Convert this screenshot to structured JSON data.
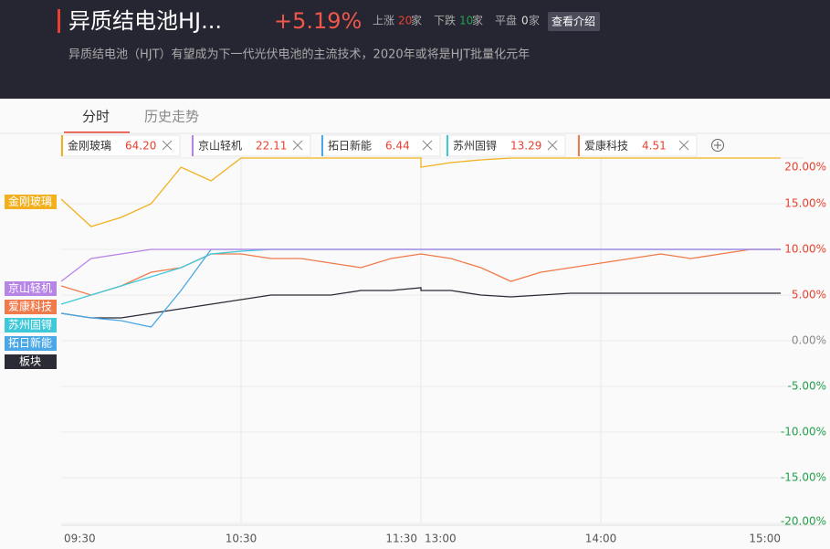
{
  "header": {
    "title": "异质结电池HJ...",
    "change": "+5.19%",
    "up_label": "上涨",
    "up_count": 20,
    "down_label": "下跌",
    "down_count": 10,
    "flat_label": "平盘",
    "flat_count": 0,
    "unit": "家",
    "button": "查看介绍",
    "description": "异质结电池（HJT）有望成为下一代光伏电池的主流技术，2020年或将是HJT批量化元年"
  },
  "tabs": [
    "分时",
    "历史走势"
  ],
  "chart_data": {
    "type": "line",
    "categories": [
      "09:30",
      null,
      null,
      null,
      null,
      null,
      "10:30",
      null,
      null,
      null,
      null,
      null,
      "11:30",
      "13:00",
      null,
      null,
      null,
      null,
      null,
      "14:00",
      null,
      null,
      null,
      null,
      null,
      "15:00"
    ],
    "series": [
      {
        "name": "金刚玻璃",
        "price": "64.20",
        "color": "#f2b01e",
        "values": [
          15.5,
          12.5,
          13.5,
          15,
          19,
          17.5,
          20,
          20,
          20,
          20,
          20,
          20,
          20,
          19,
          19.5,
          19.8,
          20,
          20,
          20,
          20,
          20,
          20,
          20,
          20,
          20,
          20
        ]
      },
      {
        "name": "京山轻机",
        "price": "22.11",
        "color": "#b785e6",
        "values": [
          6.5,
          9,
          9.5,
          10,
          10,
          10,
          10,
          10,
          10,
          10,
          10,
          10,
          10,
          10,
          10,
          10,
          10,
          10,
          10,
          10,
          10,
          10,
          10,
          10,
          10,
          10
        ]
      },
      {
        "name": "拓日新能",
        "price": "6.44",
        "color": "#4aa8e6",
        "values": [
          3,
          2.5,
          2.2,
          1.5,
          5.5,
          10,
          10,
          10,
          10,
          10,
          10,
          10,
          10,
          10,
          10,
          10,
          10,
          10,
          10,
          10,
          10,
          10,
          10,
          10,
          10,
          10
        ]
      },
      {
        "name": "苏州固锝",
        "price": "13.29",
        "color": "#3ec8d8",
        "values": [
          4,
          5,
          6,
          7,
          8,
          9.5,
          9.8,
          10,
          10,
          10,
          10,
          10,
          10,
          10,
          10,
          10,
          10,
          10,
          10,
          10,
          10,
          10,
          10,
          10,
          10,
          10
        ]
      },
      {
        "name": "爱康科技",
        "price": "4.51",
        "color": "#f07a4a",
        "values": [
          6,
          5,
          6,
          7.5,
          8,
          9.5,
          9.5,
          9,
          9,
          8.5,
          8,
          9,
          9.5,
          9.5,
          9,
          8,
          6.5,
          7.5,
          8,
          8.5,
          9,
          9.5,
          9,
          9.5,
          10,
          10
        ]
      },
      {
        "name": "板块",
        "color": "#2b2b36",
        "values": [
          3,
          2.5,
          2.5,
          3,
          3.5,
          4,
          4.5,
          5,
          5,
          5,
          5.5,
          5.5,
          5.8,
          5.5,
          5.5,
          5,
          4.8,
          5,
          5.2,
          5.2,
          5.2,
          5.2,
          5.2,
          5.2,
          5.2,
          5.2
        ]
      }
    ],
    "ylim": [
      -20,
      20
    ],
    "yticks": [
      {
        "value": 20,
        "label": "20.00%"
      },
      {
        "value": 15,
        "label": "15.00%"
      },
      {
        "value": 10,
        "label": "10.00%"
      },
      {
        "value": 5,
        "label": "5.00%"
      },
      {
        "value": 0,
        "label": "0.00%"
      },
      {
        "value": -5,
        "label": "-5.00%"
      },
      {
        "value": -10,
        "label": "-10.00%"
      },
      {
        "value": -15,
        "label": "-15.00%"
      },
      {
        "value": -20,
        "label": "-20.00%"
      }
    ],
    "up_color": "#e8412f",
    "down_color": "#22a04b",
    "flat_color": "#888888"
  }
}
